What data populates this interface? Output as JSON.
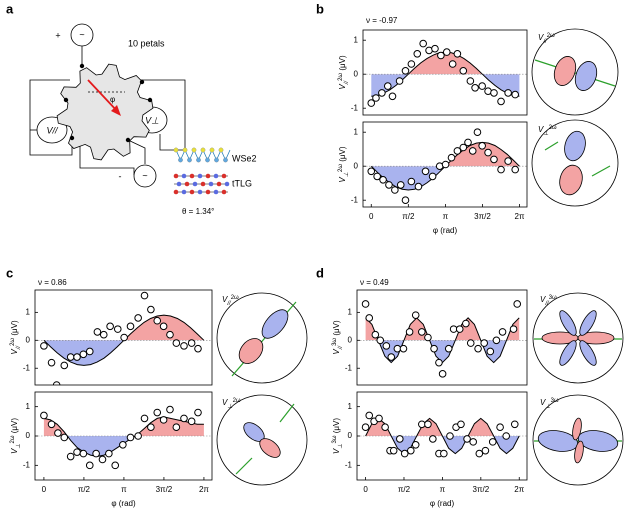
{
  "diagram": {
    "panel_label": "a",
    "plus": "+",
    "minus": "-",
    "source_symbol": "~",
    "petals": "10 petals",
    "phi": "φ",
    "v_par": "V//",
    "v_perp": "V⊥",
    "wse2": "WSe2",
    "ttlg": "tTLG",
    "theta": "θ = 1.34°"
  },
  "figure": {
    "panel_labels": [
      "b",
      "c",
      "d"
    ],
    "nu": [
      "ν = -0.97",
      "ν = 0.86",
      "ν = 0.49"
    ],
    "insets": [
      {
        "main": "V",
        "sub": "//",
        "sup": "2ω"
      },
      {
        "main": "V",
        "sub": "⊥",
        "sup": "2ω"
      },
      {
        "main": "V",
        "sub": "//",
        "sup": "2ω"
      },
      {
        "main": "V",
        "sub": "⊥",
        "sup": "2ω"
      },
      {
        "main": "V",
        "sub": "//",
        "sup": "3ω"
      },
      {
        "main": "V",
        "sub": "⊥",
        "sup": "3ω"
      }
    ]
  },
  "chart_data": [
    {
      "type": "scatter",
      "ylabel": {
        "main": "V",
        "sub": "//",
        "sup": "2ω",
        "unit": " (μV)"
      },
      "xlim": [
        -0.35,
        6.6
      ],
      "ylim": [
        -1.2,
        1.3
      ],
      "yticks": [
        -1,
        0,
        1
      ],
      "fill_above": "#f3a3a3",
      "fill_below": "#a9b3ee",
      "line_color": "#000000",
      "series": [
        {
          "kind": "points",
          "x": [
            0,
            0.2,
            0.45,
            0.7,
            0.9,
            1.2,
            1.45,
            1.7,
            1.95,
            2.2,
            2.45,
            2.7,
            2.95,
            3.2,
            3.45,
            3.65,
            3.9,
            4.2,
            4.4,
            4.7,
            4.95,
            5.2,
            5.5,
            5.8,
            6.1
          ],
          "values": [
            -0.85,
            -0.7,
            -0.55,
            -0.35,
            -0.65,
            -0.2,
            0.1,
            0.3,
            0.6,
            0.9,
            0.7,
            0.75,
            0.55,
            0.65,
            0.3,
            0.6,
            0.1,
            -0.2,
            -0.4,
            -0.35,
            -0.5,
            -0.55,
            -0.8,
            -0.55,
            -0.6
          ]
        },
        {
          "kind": "fit",
          "x": [
            0,
            0.26,
            0.52,
            0.79,
            1.05,
            1.31,
            1.57,
            1.83,
            2.09,
            2.36,
            2.62,
            2.88,
            3.14,
            3.4,
            3.67,
            3.93,
            4.19,
            4.45,
            4.71,
            4.97,
            5.24,
            5.5,
            5.76,
            6.02,
            6.28
          ],
          "values": [
            -0.65,
            -0.63,
            -0.56,
            -0.46,
            -0.33,
            -0.17,
            0,
            0.17,
            0.33,
            0.46,
            0.56,
            0.63,
            0.65,
            0.63,
            0.56,
            0.46,
            0.33,
            0.17,
            0,
            -0.17,
            -0.33,
            -0.46,
            -0.56,
            -0.63,
            -0.65
          ]
        }
      ]
    },
    {
      "type": "scatter",
      "ylabel": {
        "main": "V",
        "sub": "⊥",
        "sup": "2ω",
        "unit": " (μV)"
      },
      "xlabel": "φ (rad)",
      "xlim": [
        -0.35,
        6.6
      ],
      "ylim": [
        -1.2,
        1.3
      ],
      "yticks": [
        -1,
        0,
        1
      ],
      "xticks": [
        0,
        {
          "value": 1.5708,
          "label": "π/2"
        },
        {
          "value": 3.1416,
          "label": "π"
        },
        {
          "value": 4.7124,
          "label": "3π/2"
        },
        {
          "value": 6.2832,
          "label": "2π"
        }
      ],
      "fill_above": "#f3a3a3",
      "fill_below": "#a9b3ee",
      "line_color": "#000000",
      "series": [
        {
          "kind": "points",
          "x": [
            0,
            0.25,
            0.5,
            0.75,
            1.0,
            1.25,
            1.45,
            1.7,
            2.0,
            2.3,
            2.6,
            2.9,
            3.15,
            3.4,
            3.65,
            3.9,
            4.1,
            4.3,
            4.5,
            4.7,
            4.95,
            5.2,
            5.5,
            5.8,
            6.1
          ],
          "values": [
            -0.15,
            -0.3,
            -0.4,
            -0.55,
            -0.7,
            -0.55,
            -1.0,
            -0.45,
            -0.6,
            -0.15,
            -0.3,
            0,
            0.05,
            0.25,
            0.45,
            0.55,
            0.7,
            0.45,
            1.0,
            0.6,
            0.4,
            0.2,
            -0.1,
            0.15,
            -0.1
          ]
        },
        {
          "kind": "fit",
          "x": [
            0,
            0.26,
            0.52,
            0.79,
            1.05,
            1.31,
            1.57,
            1.83,
            2.09,
            2.36,
            2.62,
            2.88,
            3.14,
            3.4,
            3.67,
            3.93,
            4.19,
            4.45,
            4.71,
            4.97,
            5.24,
            5.5,
            5.76,
            6.02,
            6.28
          ],
          "values": [
            0,
            -0.18,
            -0.35,
            -0.49,
            -0.61,
            -0.68,
            -0.7,
            -0.68,
            -0.61,
            -0.49,
            -0.35,
            -0.18,
            0,
            0.18,
            0.35,
            0.49,
            0.61,
            0.68,
            0.7,
            0.68,
            0.61,
            0.49,
            0.35,
            0.18,
            0
          ]
        }
      ]
    },
    {
      "type": "scatter",
      "ylabel": {
        "main": "V",
        "sub": "//",
        "sup": "2ω",
        "unit": " (μV)"
      },
      "xlim": [
        -0.35,
        6.6
      ],
      "ylim": [
        -1.6,
        1.8
      ],
      "yticks": [
        -1,
        0,
        1
      ],
      "fill_above": "#f3a3a3",
      "fill_below": "#a9b3ee",
      "line_color": "#000000",
      "series": [
        {
          "kind": "points",
          "x": [
            0,
            0.3,
            0.5,
            0.8,
            1.05,
            1.3,
            1.55,
            1.8,
            2.1,
            2.35,
            2.6,
            2.9,
            3.15,
            3.4,
            3.7,
            3.95,
            4.2,
            4.45,
            4.7,
            4.95,
            5.2,
            5.5,
            5.8,
            6.05
          ],
          "values": [
            -0.2,
            -0.8,
            -1.6,
            -0.9,
            -0.6,
            -0.6,
            -0.5,
            -0.4,
            0.3,
            0.2,
            0.5,
            0.4,
            0.1,
            0.5,
            0.8,
            1.6,
            1.1,
            0.7,
            0.5,
            0.2,
            -0.1,
            -0.2,
            -0.1,
            -0.3
          ]
        },
        {
          "kind": "fit",
          "x": [
            0,
            0.26,
            0.52,
            0.79,
            1.05,
            1.31,
            1.57,
            1.83,
            2.09,
            2.36,
            2.62,
            2.88,
            3.14,
            3.4,
            3.67,
            3.93,
            4.19,
            4.45,
            4.71,
            4.97,
            5.24,
            5.5,
            5.76,
            6.02,
            6.28
          ],
          "values": [
            0,
            -0.23,
            -0.45,
            -0.64,
            -0.78,
            -0.87,
            -0.9,
            -0.87,
            -0.78,
            -0.64,
            -0.45,
            -0.23,
            0,
            0.23,
            0.45,
            0.64,
            0.78,
            0.87,
            0.9,
            0.87,
            0.78,
            0.64,
            0.45,
            0.23,
            0
          ]
        }
      ]
    },
    {
      "type": "scatter",
      "ylabel": {
        "main": "V",
        "sub": "⊥",
        "sup": "2ω",
        "unit": " (μV)"
      },
      "xlabel": "φ (rad)",
      "xlim": [
        -0.35,
        6.6
      ],
      "ylim": [
        -1.5,
        1.5
      ],
      "yticks": [
        -1,
        0,
        1
      ],
      "xticks": [
        0,
        {
          "value": 1.5708,
          "label": "π/2"
        },
        {
          "value": 3.1416,
          "label": "π"
        },
        {
          "value": 4.7124,
          "label": "3π/2"
        },
        {
          "value": 6.2832,
          "label": "2π"
        }
      ],
      "fill_above": "#f3a3a3",
      "fill_below": "#a9b3ee",
      "line_color": "#000000",
      "series": [
        {
          "kind": "points",
          "x": [
            0,
            0.3,
            0.55,
            0.8,
            1.05,
            1.3,
            1.55,
            1.8,
            2.05,
            2.3,
            2.55,
            2.8,
            3.1,
            3.4,
            3.7,
            3.95,
            4.2,
            4.45,
            4.7,
            4.95,
            5.2,
            5.5,
            5.8,
            6.05
          ],
          "values": [
            0.7,
            0.4,
            0.1,
            -0.05,
            -0.7,
            -0.55,
            -0.6,
            -1.0,
            -0.6,
            -0.8,
            -0.6,
            -1.0,
            -0.3,
            -0.05,
            0,
            0.6,
            0.3,
            0.8,
            0.55,
            0.9,
            0.3,
            0.6,
            0.5,
            0.8
          ]
        },
        {
          "kind": "fit",
          "x": [
            0,
            0.26,
            0.52,
            0.79,
            1.05,
            1.31,
            1.57,
            1.83,
            2.09,
            2.36,
            2.62,
            2.88,
            3.14,
            3.4,
            3.67,
            3.93,
            4.19,
            4.45,
            4.71,
            4.97,
            5.24,
            5.5,
            5.76,
            6.02,
            6.28
          ],
          "values": [
            0.6,
            0.55,
            0.4,
            0.15,
            -0.15,
            -0.4,
            -0.55,
            -0.65,
            -0.7,
            -0.65,
            -0.55,
            -0.4,
            -0.25,
            -0.1,
            0.05,
            0.25,
            0.45,
            0.6,
            0.65,
            0.6,
            0.55,
            0.5,
            0.45,
            0.4,
            0.4
          ]
        }
      ]
    },
    {
      "type": "scatter",
      "ylabel": {
        "main": "V",
        "sub": "//",
        "sup": "3ω",
        "unit": " (μV)"
      },
      "xlim": [
        -0.35,
        6.6
      ],
      "ylim": [
        -1.6,
        1.8
      ],
      "yticks": [
        -1,
        0,
        1
      ],
      "fill_above": "#f3a3a3",
      "fill_below": "#a9b3ee",
      "line_color": "#000000",
      "series": [
        {
          "kind": "points",
          "x": [
            0,
            0.15,
            0.4,
            0.6,
            0.85,
            1.05,
            1.3,
            1.55,
            1.8,
            2.05,
            2.3,
            2.55,
            2.8,
            3.0,
            3.15,
            3.4,
            3.6,
            3.85,
            4.1,
            4.3,
            4.6,
            4.85,
            5.1,
            5.35,
            5.6,
            6.05,
            6.2
          ],
          "values": [
            1.3,
            0.8,
            0.2,
            0,
            -0.2,
            -0.6,
            -0.3,
            -0.3,
            0.3,
            0.9,
            0.3,
            0.1,
            -0.3,
            -0.8,
            -1.2,
            -0.3,
            0.4,
            0.4,
            0.6,
            -0.1,
            -0.3,
            -0.1,
            -0.4,
            0,
            0.3,
            0.4,
            1.3
          ]
        },
        {
          "kind": "fit",
          "x": [
            0,
            0.26,
            0.52,
            0.79,
            1.05,
            1.31,
            1.57,
            1.83,
            2.09,
            2.36,
            2.62,
            2.88,
            3.14,
            3.4,
            3.67,
            3.93,
            4.19,
            4.45,
            4.71,
            4.97,
            5.24,
            5.5,
            5.76,
            6.02,
            6.28
          ],
          "values": [
            0.8,
            0.57,
            0,
            -0.57,
            -0.8,
            -0.57,
            0,
            0.57,
            0.8,
            0.57,
            0,
            -0.57,
            -0.8,
            -0.57,
            0,
            0.57,
            0.8,
            0.57,
            0,
            -0.57,
            -0.8,
            -0.57,
            0,
            0.57,
            0.8
          ]
        }
      ]
    },
    {
      "type": "scatter",
      "ylabel": {
        "main": "V",
        "sub": "⊥",
        "sup": "3ω",
        "unit": " (μV)"
      },
      "xlabel": "φ (rad)",
      "xlim": [
        -0.35,
        6.6
      ],
      "ylim": [
        -1.5,
        1.5
      ],
      "yticks": [
        -1,
        0,
        1
      ],
      "xticks": [
        0,
        {
          "value": 1.5708,
          "label": "π/2"
        },
        {
          "value": 3.1416,
          "label": "π"
        },
        {
          "value": 4.7124,
          "label": "3π/2"
        },
        {
          "value": 6.2832,
          "label": "2π"
        }
      ],
      "fill_above": "#f3a3a3",
      "fill_below": "#a9b3ee",
      "line_color": "#000000",
      "series": [
        {
          "kind": "points",
          "x": [
            0,
            0.15,
            0.35,
            0.55,
            0.8,
            1.0,
            1.15,
            1.4,
            1.6,
            1.85,
            2.05,
            2.3,
            2.55,
            2.75,
            3.0,
            3.2,
            3.45,
            3.7,
            3.9,
            4.15,
            4.4,
            4.65,
            4.9,
            5.2,
            5.5,
            5.75,
            6.1
          ],
          "values": [
            0.3,
            0.7,
            0.5,
            0.6,
            0.3,
            -0.5,
            -0.5,
            -0.1,
            -0.6,
            -0.5,
            -0.3,
            0.4,
            0.4,
            -0.1,
            -0.6,
            -0.6,
            0,
            0.3,
            0.4,
            -0.1,
            -0.2,
            -0.6,
            -0.5,
            -0.2,
            0.3,
            0,
            0.4
          ]
        },
        {
          "kind": "fit",
          "x": [
            0,
            0.26,
            0.52,
            0.79,
            1.05,
            1.31,
            1.57,
            1.83,
            2.09,
            2.36,
            2.62,
            2.88,
            3.14,
            3.4,
            3.67,
            3.93,
            4.19,
            4.45,
            4.71,
            4.97,
            5.24,
            5.5,
            5.76,
            6.02,
            6.28
          ],
          "values": [
            0,
            0.42,
            0.6,
            0.42,
            0,
            -0.42,
            -0.6,
            -0.42,
            0,
            0.42,
            0.6,
            0.42,
            0,
            -0.42,
            -0.6,
            -0.42,
            0,
            0.42,
            0.6,
            0.42,
            0,
            -0.42,
            -0.6,
            -0.42,
            0
          ]
        }
      ]
    }
  ]
}
